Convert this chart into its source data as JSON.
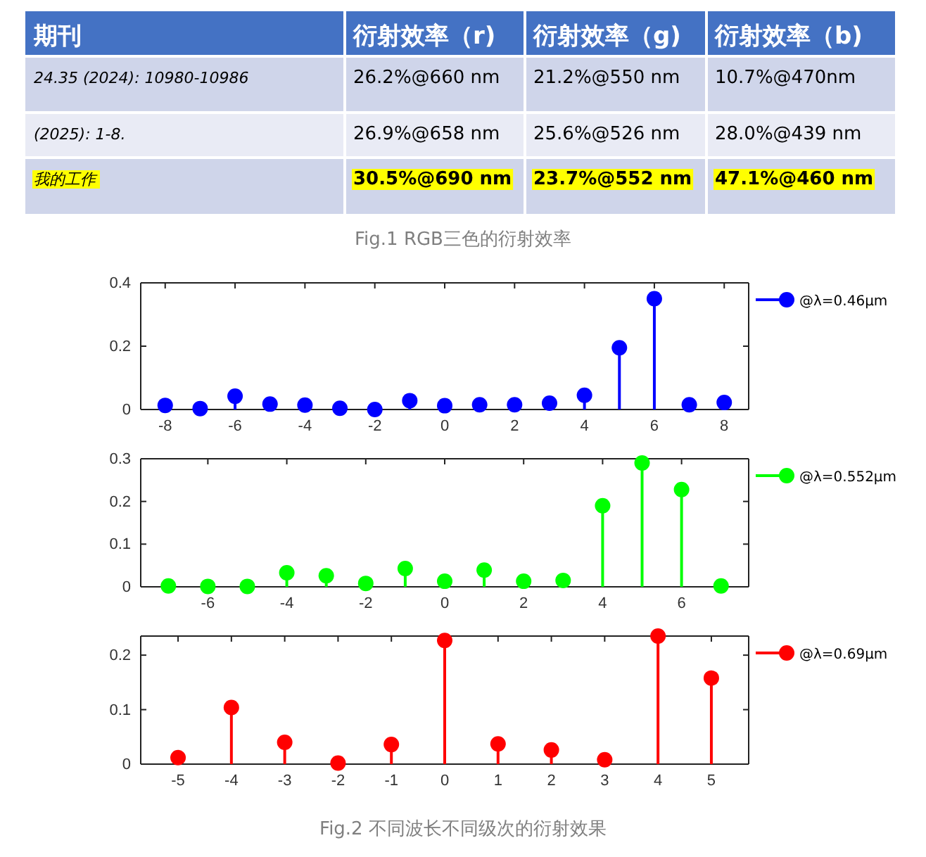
{
  "chart_data": [
    {
      "type": "other",
      "title": "Fig.1 RGB三色的衍射效率",
      "annotations": [
        "期刊",
        "衍射效率（r)",
        "衍射效率（g)",
        "衍射效率（b)",
        "24.35 (2024): 10980-10986",
        "26.2%@660 nm",
        "21.2%@550 nm",
        "10.7%@470nm",
        "(2025): 1-8.",
        "26.9%@658 nm",
        "25.6%@526 nm",
        "28.0%@439 nm",
        "我的工作",
        "30.5%@690 nm",
        "23.7%@552 nm",
        "47.1%@460 nm"
      ]
    },
    {
      "type": "lollipop",
      "x": [
        -8,
        -7,
        -6,
        -5,
        -4,
        -3,
        -2,
        -1,
        0,
        1,
        2,
        3,
        4,
        5,
        6,
        7,
        8
      ],
      "series": [
        {
          "name": "@λ=0.46μm",
          "color": "#0000ff",
          "values": [
            0.013,
            0.003,
            0.042,
            0.017,
            0.014,
            0.004,
            0.0,
            0.028,
            0.012,
            0.015,
            0.015,
            0.02,
            0.045,
            0.195,
            0.35,
            0.015,
            0.022
          ]
        }
      ],
      "xlim": [
        -8.7,
        8.7
      ],
      "xticks": [
        -8,
        -6,
        -4,
        -2,
        0,
        2,
        4,
        6,
        8
      ],
      "ylim": [
        0,
        0.4
      ],
      "yticks": [
        0,
        0.2,
        0.4
      ],
      "marker": "circle",
      "legend": "top right"
    },
    {
      "type": "lollipop",
      "x": [
        -7,
        -6,
        -5,
        -4,
        -3,
        -2,
        -1,
        0,
        1,
        2,
        3,
        4,
        5,
        6,
        7
      ],
      "series": [
        {
          "name": "@λ=0.552μm",
          "color": "#00ff00",
          "values": [
            0.002,
            0.001,
            0.001,
            0.033,
            0.026,
            0.008,
            0.043,
            0.013,
            0.039,
            0.013,
            0.015,
            0.19,
            0.29,
            0.228,
            0.002
          ]
        }
      ],
      "xlim": [
        -7.7,
        7.7
      ],
      "xticks": [
        -6,
        -4,
        -2,
        0,
        2,
        4,
        6
      ],
      "ylim": [
        0,
        0.3
      ],
      "yticks": [
        0,
        0.1,
        0.2,
        0.3
      ],
      "marker": "circle",
      "legend": "top right"
    },
    {
      "type": "lollipop",
      "x": [
        -5,
        -4,
        -3,
        -2,
        -1,
        0,
        1,
        2,
        3,
        4,
        5
      ],
      "series": [
        {
          "name": "@λ=0.69μm",
          "color": "#ff0000",
          "values": [
            0.012,
            0.104,
            0.04,
            0.002,
            0.036,
            0.227,
            0.037,
            0.026,
            0.008,
            0.235,
            0.158
          ]
        }
      ],
      "xlim": [
        -5.7,
        5.7
      ],
      "xticks": [
        -5,
        -4,
        -3,
        -2,
        -1,
        0,
        1,
        2,
        3,
        4,
        5
      ],
      "ylim": [
        0,
        0.235
      ],
      "yticks": [
        0,
        0.1,
        0.2
      ],
      "marker": "circle",
      "legend": "top right",
      "annotations": [
        "Fig.2 不同波长不同级次的衍射效果"
      ]
    }
  ]
}
